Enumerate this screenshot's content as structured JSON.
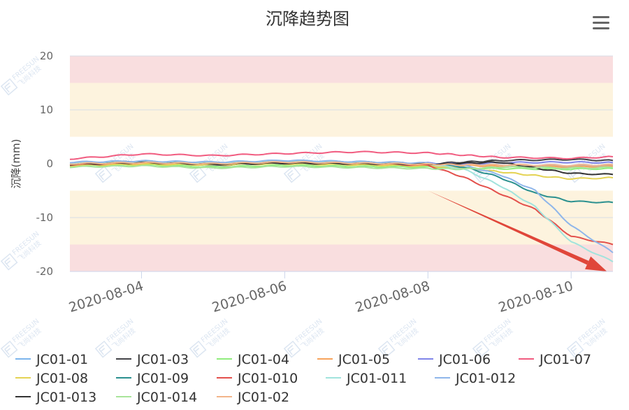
{
  "colors": {
    "band_red": "#f9dedf",
    "band_yellow": "#fdf3de",
    "grid": "#d8dce6",
    "axis": "#ccd6eb",
    "arrow": "#e0463a"
  },
  "menu_icon": "hamburger-menu-icon",
  "watermark": {
    "brand": "FREESUN",
    "cn": "飞尚科技"
  },
  "chart_data": {
    "type": "line",
    "title": "沉降趋势图",
    "xlabel": "",
    "ylabel": "沉降(mm)",
    "ylim": [
      -20,
      20
    ],
    "yticks": [
      20,
      10,
      0,
      -10,
      -20
    ],
    "x_start": "2020-08-03 00:00",
    "x_end": "2020-08-10 14:00",
    "xticks": [
      "2020-08-04",
      "2020-08-06",
      "2020-08-08",
      "2020-08-10"
    ],
    "grid": true,
    "legend_position": "bottom",
    "bands": [
      {
        "from": 15,
        "to": 20,
        "level": "red"
      },
      {
        "from": 5,
        "to": 15,
        "level": "yellow"
      },
      {
        "from": -15,
        "to": -5,
        "level": "yellow"
      },
      {
        "from": -20,
        "to": -15,
        "level": "red"
      }
    ],
    "annotation": {
      "type": "arrow",
      "from": [
        "2020-08-08 00:00",
        -5
      ],
      "to": [
        "2020-08-10 12:00",
        -20
      ]
    },
    "series": [
      {
        "name": "JC01-01",
        "color": "#7cb5ec",
        "points": [
          [
            "2020-08-03 00:00",
            0.2
          ],
          [
            "2020-08-04 00:00",
            0.4
          ],
          [
            "2020-08-05 00:00",
            0.1
          ],
          [
            "2020-08-06 00:00",
            0.6
          ],
          [
            "2020-08-07 00:00",
            0.3
          ],
          [
            "2020-08-08 00:00",
            0.1
          ],
          [
            "2020-08-08 12:00",
            -0.1
          ],
          [
            "2020-08-09 00:00",
            -0.2
          ],
          [
            "2020-08-10 00:00",
            -0.4
          ],
          [
            "2020-08-10 14:00",
            -0.3
          ]
        ]
      },
      {
        "name": "JC01-03",
        "color": "#434348",
        "points": [
          [
            "2020-08-03 00:00",
            0.0
          ],
          [
            "2020-08-04 00:00",
            0.5
          ],
          [
            "2020-08-05 00:00",
            -0.3
          ],
          [
            "2020-08-06 00:00",
            0.2
          ],
          [
            "2020-08-07 00:00",
            0.3
          ],
          [
            "2020-08-08 00:00",
            0.0
          ],
          [
            "2020-08-08 12:00",
            0.3
          ],
          [
            "2020-08-09 00:00",
            0.6
          ],
          [
            "2020-08-10 00:00",
            0.8
          ],
          [
            "2020-08-10 14:00",
            0.6
          ]
        ]
      },
      {
        "name": "JC01-04",
        "color": "#90ed7d",
        "points": [
          [
            "2020-08-03 00:00",
            -0.4
          ],
          [
            "2020-08-04 00:00",
            -0.2
          ],
          [
            "2020-08-05 00:00",
            -0.6
          ],
          [
            "2020-08-06 00:00",
            -0.3
          ],
          [
            "2020-08-07 00:00",
            -0.5
          ],
          [
            "2020-08-08 00:00",
            -0.6
          ],
          [
            "2020-08-08 12:00",
            -0.8
          ],
          [
            "2020-08-09 00:00",
            -0.9
          ],
          [
            "2020-08-10 00:00",
            -1.0
          ],
          [
            "2020-08-10 14:00",
            -0.9
          ]
        ]
      },
      {
        "name": "JC01-05",
        "color": "#f7a35c",
        "points": [
          [
            "2020-08-03 00:00",
            -0.1
          ],
          [
            "2020-08-04 00:00",
            0.1
          ],
          [
            "2020-08-05 00:00",
            0.0
          ],
          [
            "2020-08-06 00:00",
            0.2
          ],
          [
            "2020-08-07 00:00",
            0.0
          ],
          [
            "2020-08-08 00:00",
            -0.2
          ],
          [
            "2020-08-08 12:00",
            -0.3
          ],
          [
            "2020-08-09 00:00",
            -0.5
          ],
          [
            "2020-08-10 00:00",
            -0.6
          ],
          [
            "2020-08-10 14:00",
            -0.5
          ]
        ]
      },
      {
        "name": "JC01-06",
        "color": "#8085e9",
        "points": [
          [
            "2020-08-03 00:00",
            0.1
          ],
          [
            "2020-08-04 00:00",
            0.3
          ],
          [
            "2020-08-05 00:00",
            0.2
          ],
          [
            "2020-08-06 00:00",
            0.4
          ],
          [
            "2020-08-07 00:00",
            0.2
          ],
          [
            "2020-08-08 00:00",
            0.1
          ],
          [
            "2020-08-08 12:00",
            0.0
          ],
          [
            "2020-08-09 00:00",
            0.2
          ],
          [
            "2020-08-10 00:00",
            0.3
          ],
          [
            "2020-08-10 14:00",
            0.2
          ]
        ]
      },
      {
        "name": "JC01-07",
        "color": "#f15c80",
        "points": [
          [
            "2020-08-03 00:00",
            0.9
          ],
          [
            "2020-08-04 00:00",
            1.8
          ],
          [
            "2020-08-05 00:00",
            1.5
          ],
          [
            "2020-08-06 00:00",
            1.9
          ],
          [
            "2020-08-07 00:00",
            2.2
          ],
          [
            "2020-08-08 00:00",
            2.0
          ],
          [
            "2020-08-08 12:00",
            1.6
          ],
          [
            "2020-08-09 00:00",
            1.2
          ],
          [
            "2020-08-10 00:00",
            1.0
          ],
          [
            "2020-08-10 14:00",
            1.3
          ]
        ]
      },
      {
        "name": "JC01-08",
        "color": "#e4d354",
        "points": [
          [
            "2020-08-03 00:00",
            -0.3
          ],
          [
            "2020-08-04 00:00",
            -0.1
          ],
          [
            "2020-08-05 00:00",
            -0.2
          ],
          [
            "2020-08-06 00:00",
            0.0
          ],
          [
            "2020-08-07 00:00",
            -0.2
          ],
          [
            "2020-08-08 00:00",
            -0.4
          ],
          [
            "2020-08-08 12:00",
            -0.8
          ],
          [
            "2020-08-09 00:00",
            -1.5
          ],
          [
            "2020-08-09 12:00",
            -2.2
          ],
          [
            "2020-08-10 00:00",
            -2.8
          ],
          [
            "2020-08-10 14:00",
            -2.6
          ]
        ]
      },
      {
        "name": "JC01-09",
        "color": "#2b908f",
        "points": [
          [
            "2020-08-03 00:00",
            0.2
          ],
          [
            "2020-08-04 00:00",
            0.3
          ],
          [
            "2020-08-05 00:00",
            0.1
          ],
          [
            "2020-08-06 00:00",
            0.4
          ],
          [
            "2020-08-07 00:00",
            0.3
          ],
          [
            "2020-08-08 00:00",
            0.0
          ],
          [
            "2020-08-08 12:00",
            -0.6
          ],
          [
            "2020-08-09 00:00",
            -2.5
          ],
          [
            "2020-08-09 12:00",
            -5.5
          ],
          [
            "2020-08-10 00:00",
            -7.0
          ],
          [
            "2020-08-10 14:00",
            -7.2
          ]
        ]
      },
      {
        "name": "JC01-010",
        "color": "#e3504c",
        "points": [
          [
            "2020-08-03 00:00",
            -0.2
          ],
          [
            "2020-08-04 00:00",
            0.2
          ],
          [
            "2020-08-05 00:00",
            0.0
          ],
          [
            "2020-08-06 00:00",
            0.3
          ],
          [
            "2020-08-07 00:00",
            0.1
          ],
          [
            "2020-08-08 00:00",
            -0.3
          ],
          [
            "2020-08-08 12:00",
            -2.5
          ],
          [
            "2020-08-09 00:00",
            -5.5
          ],
          [
            "2020-08-09 12:00",
            -8.5
          ],
          [
            "2020-08-10 00:00",
            -13.5
          ],
          [
            "2020-08-10 14:00",
            -15.0
          ]
        ]
      },
      {
        "name": "JC01-011",
        "color": "#a1e3dd",
        "points": [
          [
            "2020-08-03 00:00",
            0.1
          ],
          [
            "2020-08-04 00:00",
            0.4
          ],
          [
            "2020-08-05 00:00",
            0.2
          ],
          [
            "2020-08-06 00:00",
            0.5
          ],
          [
            "2020-08-07 00:00",
            0.3
          ],
          [
            "2020-08-08 00:00",
            0.0
          ],
          [
            "2020-08-08 12:00",
            -1.0
          ],
          [
            "2020-08-09 00:00",
            -4.0
          ],
          [
            "2020-08-09 12:00",
            -8.0
          ],
          [
            "2020-08-10 00:00",
            -14.5
          ],
          [
            "2020-08-10 14:00",
            -18.2
          ]
        ]
      },
      {
        "name": "JC01-012",
        "color": "#8fb6ea",
        "points": [
          [
            "2020-08-03 00:00",
            0.3
          ],
          [
            "2020-08-04 00:00",
            0.5
          ],
          [
            "2020-08-05 00:00",
            0.3
          ],
          [
            "2020-08-06 00:00",
            0.6
          ],
          [
            "2020-08-07 00:00",
            0.4
          ],
          [
            "2020-08-08 00:00",
            0.1
          ],
          [
            "2020-08-08 12:00",
            -0.3
          ],
          [
            "2020-08-09 00:00",
            -2.0
          ],
          [
            "2020-08-09 12:00",
            -5.0
          ],
          [
            "2020-08-10 00:00",
            -11.5
          ],
          [
            "2020-08-10 14:00",
            -16.5
          ]
        ]
      },
      {
        "name": "JC01-013",
        "color": "#333333",
        "points": [
          [
            "2020-08-03 00:00",
            -0.1
          ],
          [
            "2020-08-04 00:00",
            0.2
          ],
          [
            "2020-08-05 00:00",
            -0.1
          ],
          [
            "2020-08-06 00:00",
            0.1
          ],
          [
            "2020-08-07 00:00",
            0.0
          ],
          [
            "2020-08-08 00:00",
            -0.1
          ],
          [
            "2020-08-08 12:00",
            0.1
          ],
          [
            "2020-08-09 00:00",
            0.3
          ],
          [
            "2020-08-09 12:00",
            -0.8
          ],
          [
            "2020-08-10 00:00",
            -1.8
          ],
          [
            "2020-08-10 14:00",
            -2.0
          ]
        ]
      },
      {
        "name": "JC01-014",
        "color": "#a8e49a",
        "points": [
          [
            "2020-08-03 00:00",
            -0.6
          ],
          [
            "2020-08-04 00:00",
            -0.4
          ],
          [
            "2020-08-05 00:00",
            -0.8
          ],
          [
            "2020-08-06 00:00",
            -0.5
          ],
          [
            "2020-08-07 00:00",
            -0.7
          ],
          [
            "2020-08-08 00:00",
            -0.9
          ],
          [
            "2020-08-08 12:00",
            -1.0
          ],
          [
            "2020-08-09 00:00",
            -0.6
          ],
          [
            "2020-08-10 00:00",
            -0.8
          ],
          [
            "2020-08-10 14:00",
            -0.7
          ]
        ]
      },
      {
        "name": "JC01-02",
        "color": "#f3b58a",
        "points": [
          [
            "2020-08-03 00:00",
            0.0
          ],
          [
            "2020-08-04 00:00",
            0.2
          ],
          [
            "2020-08-05 00:00",
            0.0
          ],
          [
            "2020-08-06 00:00",
            0.3
          ],
          [
            "2020-08-07 00:00",
            0.1
          ],
          [
            "2020-08-08 00:00",
            -0.1
          ],
          [
            "2020-08-08 12:00",
            -0.2
          ],
          [
            "2020-08-09 00:00",
            -0.2
          ],
          [
            "2020-08-10 00:00",
            -0.3
          ],
          [
            "2020-08-10 14:00",
            -0.2
          ]
        ]
      }
    ]
  }
}
